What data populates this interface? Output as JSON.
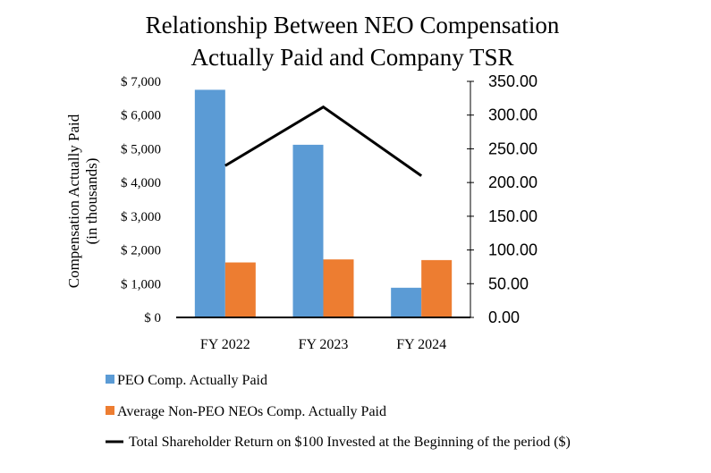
{
  "chart_data": {
    "type": "bar",
    "title_lines": [
      "Relationship Between NEO Compensation",
      "Actually Paid and Company TSR"
    ],
    "categories": [
      "FY 2022",
      "FY 2023",
      "FY 2024"
    ],
    "series": [
      {
        "name": "PEO Comp. Actually Paid",
        "kind": "bar",
        "axis": "left",
        "color": "#5B9BD5",
        "values": [
          6750,
          5120,
          880
        ]
      },
      {
        "name": "Average Non-PEO NEOs Comp. Actually Paid",
        "kind": "bar",
        "axis": "left",
        "color": "#ED7D31",
        "values": [
          1630,
          1720,
          1700
        ]
      },
      {
        "name": "Total Shareholder Return  on $100 Invested at the Beginning of the period ($)",
        "kind": "line",
        "axis": "right",
        "color": "#000000",
        "values": [
          225,
          312,
          210
        ]
      }
    ],
    "ylabel_lines": [
      "Compensation Actually Paid",
      "(in thousands)"
    ],
    "y_left": {
      "min": 0,
      "max": 7000,
      "ticks": [
        0,
        1000,
        2000,
        3000,
        4000,
        5000,
        6000,
        7000
      ],
      "tick_labels": [
        "$ 0",
        "$ 1,000",
        "$ 2,000",
        "$ 3,000",
        "$ 4,000",
        "$ 5,000",
        "$ 6,000",
        "$ 7,000"
      ]
    },
    "y_right": {
      "min": 0,
      "max": 350,
      "ticks": [
        0,
        50,
        100,
        150,
        200,
        250,
        300,
        350
      ],
      "tick_labels": [
        "0.00",
        "50.00",
        "100.00",
        "150.00",
        "200.00",
        "250.00",
        "300.00",
        "350.00"
      ]
    },
    "legend_position": "bottom-left",
    "grid": false
  }
}
